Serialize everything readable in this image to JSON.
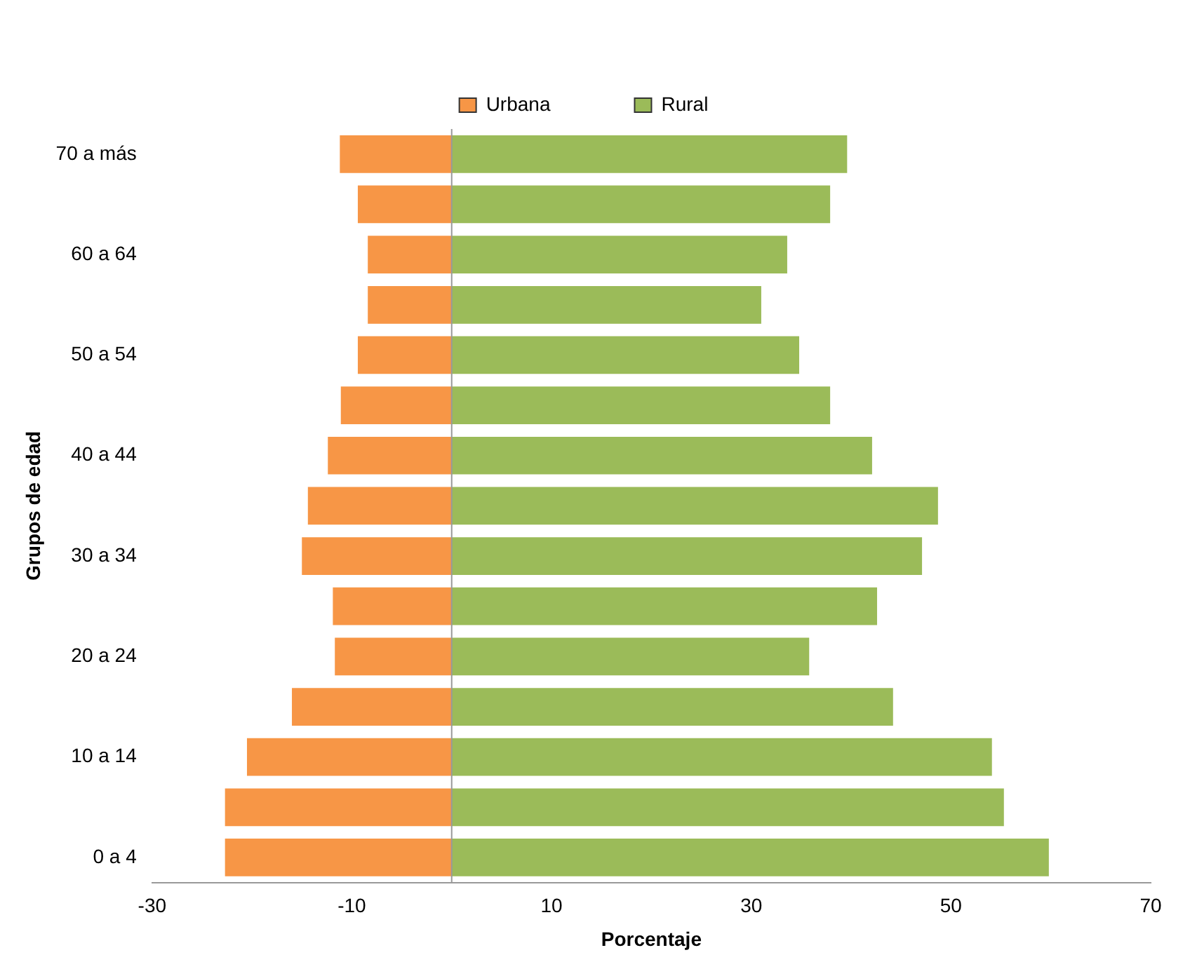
{
  "chart_data": {
    "type": "bar",
    "orientation": "horizontal",
    "stacked": true,
    "xlabel": "Porcentaje",
    "ylabel": "Grupos de edad",
    "categories": [
      "70 a más",
      null,
      "60 a 64",
      null,
      "50 a 54",
      null,
      "40 a 44",
      null,
      "30 a 34",
      null,
      "20 a 24",
      null,
      "10 a 14",
      null,
      "0 a 4"
    ],
    "series": [
      {
        "name": "Urbana",
        "color": "#f79646",
        "values": [
          -11.2,
          -9.4,
          -8.4,
          -8.4,
          -9.4,
          -11.1,
          -12.4,
          -14.4,
          -15.0,
          -11.9,
          -11.7,
          -16.0,
          -20.5,
          -22.7,
          -22.7
        ]
      },
      {
        "name": "Rural",
        "color": "#9bbb59",
        "values": [
          39.6,
          37.9,
          33.6,
          31.0,
          34.8,
          37.9,
          42.1,
          48.7,
          47.1,
          42.6,
          35.8,
          44.2,
          54.1,
          55.3,
          59.8
        ]
      }
    ],
    "xlim": [
      -30,
      70
    ],
    "xticks": [
      -30,
      -10,
      10,
      30,
      50,
      70
    ],
    "grid": false,
    "legend": "top"
  }
}
